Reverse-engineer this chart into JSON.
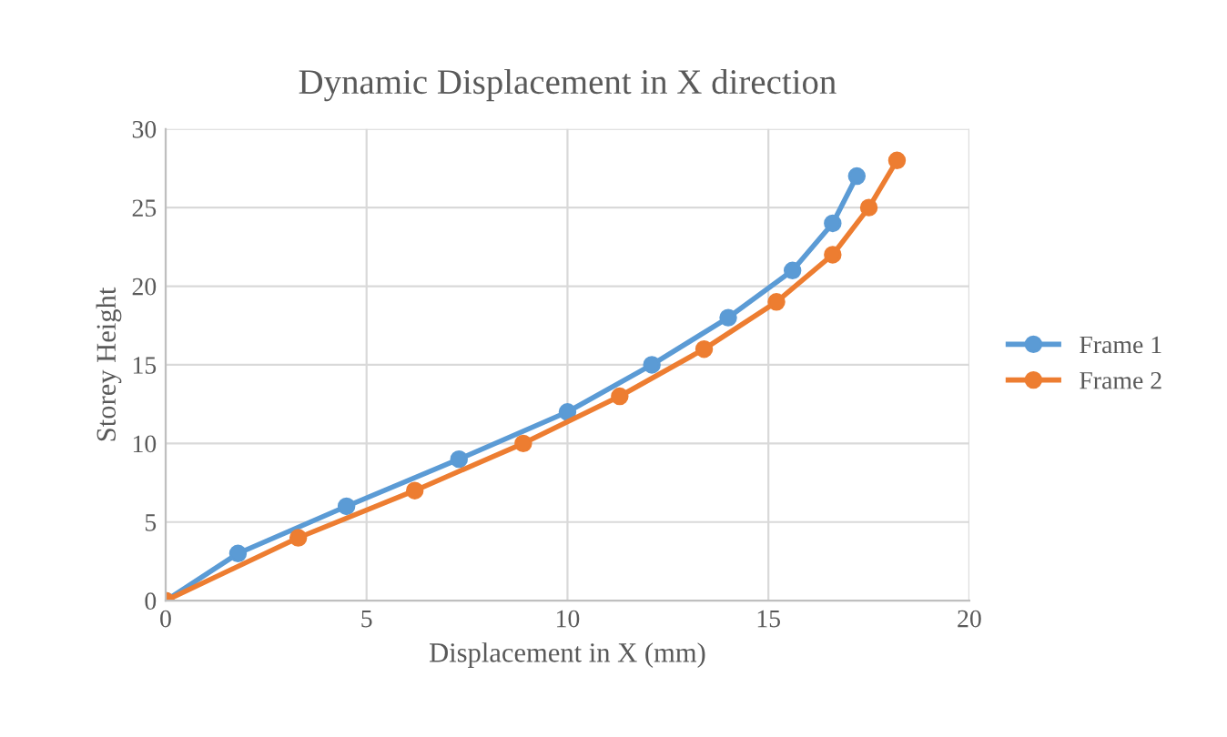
{
  "chart_data": {
    "type": "line",
    "title": "Dynamic Displacement in X direction",
    "xlabel": "Displacement in X (mm)",
    "ylabel": "Storey Height",
    "xlim": [
      0,
      20
    ],
    "xticks": [
      0,
      5,
      10,
      15,
      20
    ],
    "ylim": [
      0,
      30
    ],
    "yticks": [
      0,
      5,
      10,
      15,
      20,
      25,
      30
    ],
    "grid": true,
    "legend": "right",
    "marker": "circle",
    "series": [
      {
        "name": "Frame 1",
        "color": "#5b9bd5",
        "x": [
          0,
          1.8,
          4.5,
          7.3,
          10,
          12.1,
          14,
          15.6,
          16.6,
          17.2
        ],
        "values": [
          0,
          3,
          6,
          9,
          12,
          15,
          18,
          21,
          24,
          27
        ]
      },
      {
        "name": "Frame 2",
        "color": "#ed7d31",
        "x": [
          0,
          3.3,
          6.2,
          8.9,
          11.3,
          13.4,
          15.2,
          16.6,
          17.5,
          18.2
        ],
        "values": [
          0,
          4,
          7,
          10,
          13,
          16,
          19,
          22,
          25,
          28
        ]
      }
    ]
  }
}
